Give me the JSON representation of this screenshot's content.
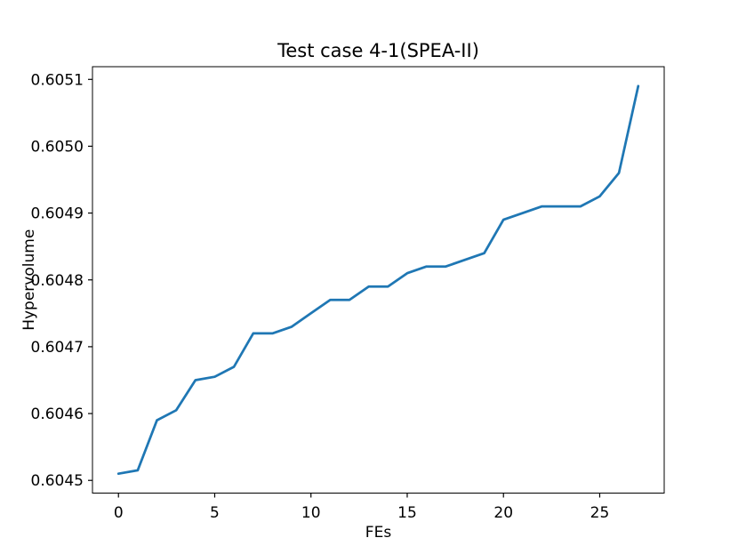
{
  "chart_data": {
    "type": "line",
    "title": "Test case 4-1(SPEA-II)",
    "xlabel": "FEs",
    "ylabel": "Hypervolume",
    "x": [
      0,
      1,
      2,
      3,
      4,
      5,
      6,
      7,
      8,
      9,
      10,
      11,
      12,
      13,
      14,
      15,
      16,
      17,
      18,
      19,
      20,
      21,
      22,
      23,
      24,
      25,
      26,
      27
    ],
    "y": [
      0.60451,
      0.604515,
      0.60459,
      0.604605,
      0.60465,
      0.604655,
      0.60467,
      0.60472,
      0.60472,
      0.60473,
      0.60475,
      0.60477,
      0.60477,
      0.60479,
      0.60479,
      0.60481,
      0.60482,
      0.60482,
      0.60483,
      0.60484,
      0.60489,
      0.6049,
      0.60491,
      0.60491,
      0.60491,
      0.604925,
      0.60496,
      0.60509
    ],
    "xlim": [
      -1.35,
      28.35
    ],
    "ylim": [
      0.604481,
      0.605119
    ],
    "xticks": [
      0,
      5,
      10,
      15,
      20,
      25
    ],
    "yticks": [
      0.6045,
      0.6046,
      0.6047,
      0.6048,
      0.6049,
      0.605,
      0.6051
    ],
    "ytick_decimals": 4,
    "grid": false,
    "legend_position": "none",
    "line_color": "#1f77b4",
    "axis_color": "#000000",
    "background_color": "#ffffff"
  }
}
